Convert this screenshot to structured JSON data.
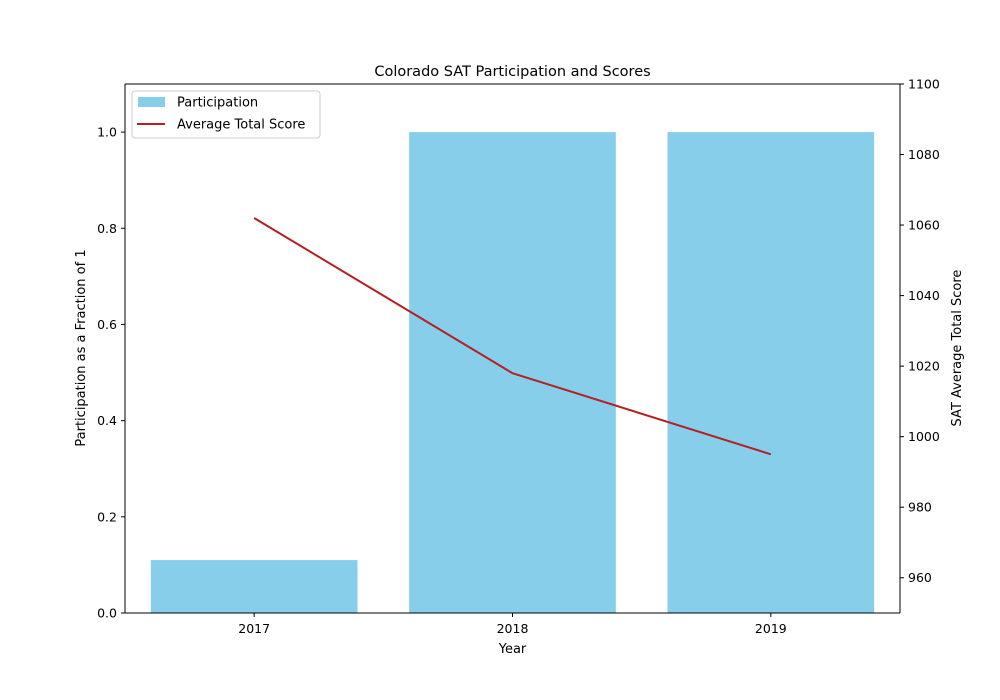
{
  "chart_data": {
    "type": "bar",
    "title": "Colorado SAT Participation and Scores",
    "xlabel": "Year",
    "ylabel": "Participation as a Fraction of 1",
    "y2label": "SAT Average Total Score",
    "categories": [
      "2017",
      "2018",
      "2019"
    ],
    "ylim": [
      0,
      1.1
    ],
    "y2lim": [
      950,
      1100
    ],
    "yticks": [
      "0.0",
      "0.2",
      "0.4",
      "0.6",
      "0.8",
      "1.0"
    ],
    "y2ticks": [
      "960",
      "980",
      "1000",
      "1020",
      "1040",
      "1060",
      "1080",
      "1100"
    ],
    "grid": false,
    "legend_position": "top-left",
    "series": [
      {
        "name": "Participation",
        "type": "bar",
        "axis": "left",
        "values": [
          0.11,
          1.0,
          1.0
        ],
        "color": "#87CEEB"
      },
      {
        "name": "Average Total Score",
        "type": "line",
        "axis": "right",
        "values": [
          1062,
          1018,
          995
        ],
        "color": "#B22222"
      }
    ]
  }
}
